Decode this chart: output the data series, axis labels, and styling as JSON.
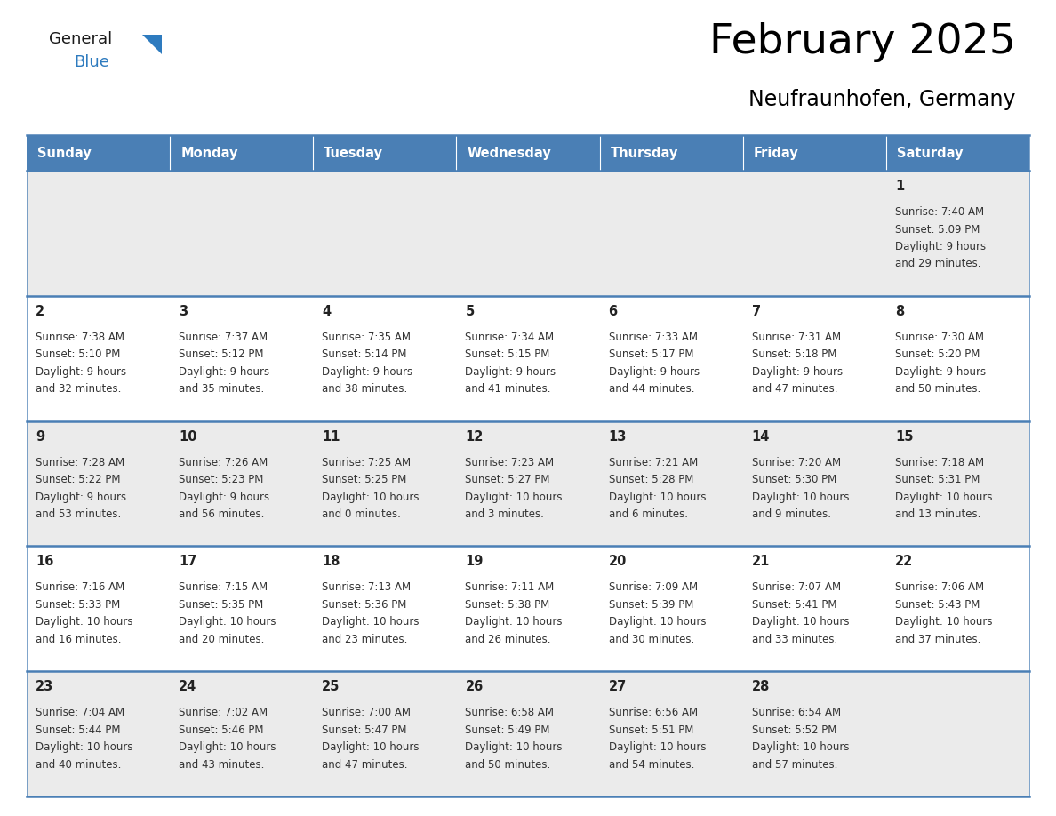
{
  "title": "February 2025",
  "subtitle": "Neufraunhofen, Germany",
  "days_of_week": [
    "Sunday",
    "Monday",
    "Tuesday",
    "Wednesday",
    "Thursday",
    "Friday",
    "Saturday"
  ],
  "header_bg": "#4a7fb5",
  "header_text": "#ffffff",
  "row_bg_odd": "#ebebeb",
  "row_bg_even": "#ffffff",
  "cell_border": "#4a7fb5",
  "day_number_color": "#222222",
  "info_text_color": "#333333",
  "logo_general_color": "#1a1a1a",
  "logo_blue_color": "#2e7bbf",
  "calendar_data": [
    [
      null,
      null,
      null,
      null,
      null,
      null,
      {
        "day": "1",
        "sunrise": "7:40 AM",
        "sunset": "5:09 PM",
        "daylight_line1": "Daylight: 9 hours",
        "daylight_line2": "and 29 minutes."
      }
    ],
    [
      {
        "day": "2",
        "sunrise": "7:38 AM",
        "sunset": "5:10 PM",
        "daylight_line1": "Daylight: 9 hours",
        "daylight_line2": "and 32 minutes."
      },
      {
        "day": "3",
        "sunrise": "7:37 AM",
        "sunset": "5:12 PM",
        "daylight_line1": "Daylight: 9 hours",
        "daylight_line2": "and 35 minutes."
      },
      {
        "day": "4",
        "sunrise": "7:35 AM",
        "sunset": "5:14 PM",
        "daylight_line1": "Daylight: 9 hours",
        "daylight_line2": "and 38 minutes."
      },
      {
        "day": "5",
        "sunrise": "7:34 AM",
        "sunset": "5:15 PM",
        "daylight_line1": "Daylight: 9 hours",
        "daylight_line2": "and 41 minutes."
      },
      {
        "day": "6",
        "sunrise": "7:33 AM",
        "sunset": "5:17 PM",
        "daylight_line1": "Daylight: 9 hours",
        "daylight_line2": "and 44 minutes."
      },
      {
        "day": "7",
        "sunrise": "7:31 AM",
        "sunset": "5:18 PM",
        "daylight_line1": "Daylight: 9 hours",
        "daylight_line2": "and 47 minutes."
      },
      {
        "day": "8",
        "sunrise": "7:30 AM",
        "sunset": "5:20 PM",
        "daylight_line1": "Daylight: 9 hours",
        "daylight_line2": "and 50 minutes."
      }
    ],
    [
      {
        "day": "9",
        "sunrise": "7:28 AM",
        "sunset": "5:22 PM",
        "daylight_line1": "Daylight: 9 hours",
        "daylight_line2": "and 53 minutes."
      },
      {
        "day": "10",
        "sunrise": "7:26 AM",
        "sunset": "5:23 PM",
        "daylight_line1": "Daylight: 9 hours",
        "daylight_line2": "and 56 minutes."
      },
      {
        "day": "11",
        "sunrise": "7:25 AM",
        "sunset": "5:25 PM",
        "daylight_line1": "Daylight: 10 hours",
        "daylight_line2": "and 0 minutes."
      },
      {
        "day": "12",
        "sunrise": "7:23 AM",
        "sunset": "5:27 PM",
        "daylight_line1": "Daylight: 10 hours",
        "daylight_line2": "and 3 minutes."
      },
      {
        "day": "13",
        "sunrise": "7:21 AM",
        "sunset": "5:28 PM",
        "daylight_line1": "Daylight: 10 hours",
        "daylight_line2": "and 6 minutes."
      },
      {
        "day": "14",
        "sunrise": "7:20 AM",
        "sunset": "5:30 PM",
        "daylight_line1": "Daylight: 10 hours",
        "daylight_line2": "and 9 minutes."
      },
      {
        "day": "15",
        "sunrise": "7:18 AM",
        "sunset": "5:31 PM",
        "daylight_line1": "Daylight: 10 hours",
        "daylight_line2": "and 13 minutes."
      }
    ],
    [
      {
        "day": "16",
        "sunrise": "7:16 AM",
        "sunset": "5:33 PM",
        "daylight_line1": "Daylight: 10 hours",
        "daylight_line2": "and 16 minutes."
      },
      {
        "day": "17",
        "sunrise": "7:15 AM",
        "sunset": "5:35 PM",
        "daylight_line1": "Daylight: 10 hours",
        "daylight_line2": "and 20 minutes."
      },
      {
        "day": "18",
        "sunrise": "7:13 AM",
        "sunset": "5:36 PM",
        "daylight_line1": "Daylight: 10 hours",
        "daylight_line2": "and 23 minutes."
      },
      {
        "day": "19",
        "sunrise": "7:11 AM",
        "sunset": "5:38 PM",
        "daylight_line1": "Daylight: 10 hours",
        "daylight_line2": "and 26 minutes."
      },
      {
        "day": "20",
        "sunrise": "7:09 AM",
        "sunset": "5:39 PM",
        "daylight_line1": "Daylight: 10 hours",
        "daylight_line2": "and 30 minutes."
      },
      {
        "day": "21",
        "sunrise": "7:07 AM",
        "sunset": "5:41 PM",
        "daylight_line1": "Daylight: 10 hours",
        "daylight_line2": "and 33 minutes."
      },
      {
        "day": "22",
        "sunrise": "7:06 AM",
        "sunset": "5:43 PM",
        "daylight_line1": "Daylight: 10 hours",
        "daylight_line2": "and 37 minutes."
      }
    ],
    [
      {
        "day": "23",
        "sunrise": "7:04 AM",
        "sunset": "5:44 PM",
        "daylight_line1": "Daylight: 10 hours",
        "daylight_line2": "and 40 minutes."
      },
      {
        "day": "24",
        "sunrise": "7:02 AM",
        "sunset": "5:46 PM",
        "daylight_line1": "Daylight: 10 hours",
        "daylight_line2": "and 43 minutes."
      },
      {
        "day": "25",
        "sunrise": "7:00 AM",
        "sunset": "5:47 PM",
        "daylight_line1": "Daylight: 10 hours",
        "daylight_line2": "and 47 minutes."
      },
      {
        "day": "26",
        "sunrise": "6:58 AM",
        "sunset": "5:49 PM",
        "daylight_line1": "Daylight: 10 hours",
        "daylight_line2": "and 50 minutes."
      },
      {
        "day": "27",
        "sunrise": "6:56 AM",
        "sunset": "5:51 PM",
        "daylight_line1": "Daylight: 10 hours",
        "daylight_line2": "and 54 minutes."
      },
      {
        "day": "28",
        "sunrise": "6:54 AM",
        "sunset": "5:52 PM",
        "daylight_line1": "Daylight: 10 hours",
        "daylight_line2": "and 57 minutes."
      },
      null
    ]
  ]
}
